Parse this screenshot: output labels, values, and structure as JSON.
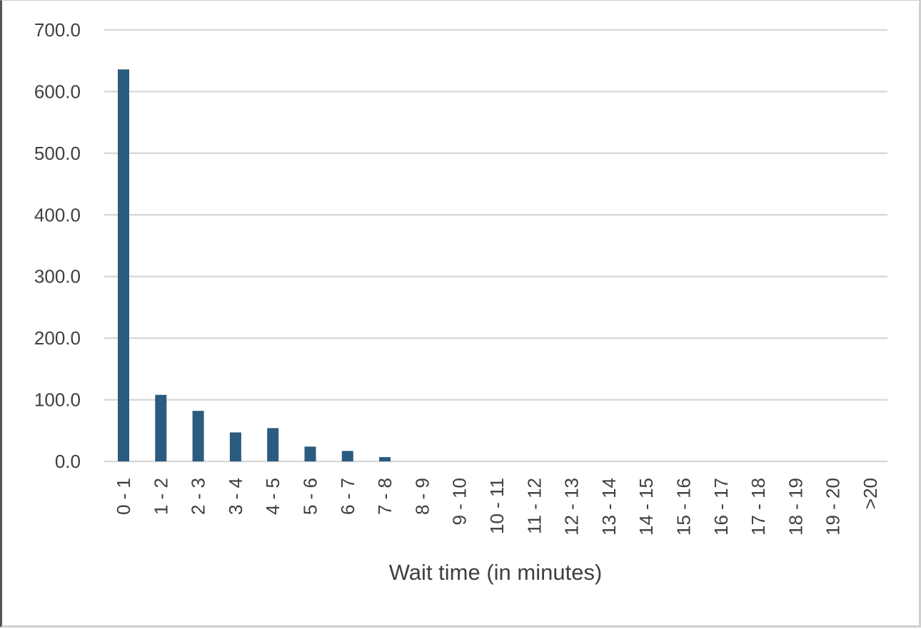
{
  "chart_data": {
    "type": "bar",
    "title": "",
    "xlabel": "Wait time (in minutes)",
    "ylabel": "",
    "categories": [
      "0 - 1",
      "1 - 2",
      "2 - 3",
      "3 - 4",
      "4 - 5",
      "5 - 6",
      "6 - 7",
      "7 - 8",
      "8 - 9",
      "9 - 10",
      "10 - 11",
      "11 - 12",
      "12 - 13",
      "13 - 14",
      "14 - 15",
      "15 - 16",
      "16 - 17",
      "17 - 18",
      "18 - 19",
      "19 - 20",
      ">20"
    ],
    "values": [
      636,
      108,
      82,
      47,
      54,
      24,
      17,
      7,
      0,
      0,
      0,
      0,
      0,
      0,
      0,
      0,
      0,
      0,
      0,
      0,
      0
    ],
    "ylim": [
      0,
      700
    ],
    "yticks": [
      "0.0",
      "100.0",
      "200.0",
      "300.0",
      "400.0",
      "500.0",
      "600.0",
      "700.0"
    ],
    "grid": true,
    "bar_color": "#2b5b7e",
    "grid_color": "#d9d9d9"
  }
}
